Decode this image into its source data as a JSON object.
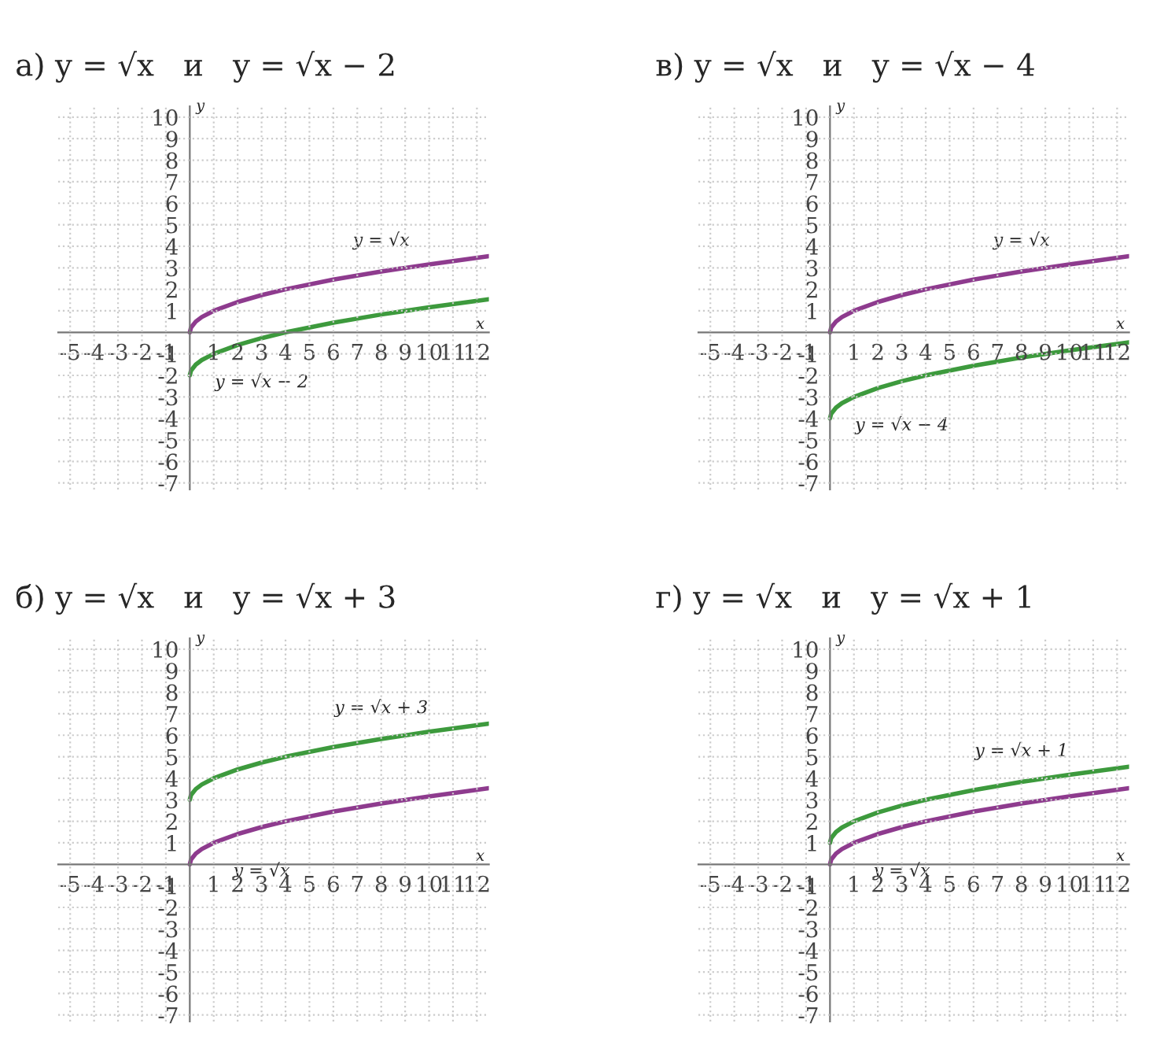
{
  "chart_data": [
    {
      "type": "line",
      "title": "а) y = √x   и   y = √x − 2",
      "xlabel": "x",
      "ylabel": "y",
      "xlim": [
        -5.5,
        12.5
      ],
      "ylim": [
        -7.3,
        10.5
      ],
      "xticks": [
        -5,
        -4,
        -3,
        -2,
        -1,
        1,
        2,
        3,
        4,
        5,
        6,
        7,
        8,
        9,
        10,
        11,
        12
      ],
      "yticks": [
        -7,
        -6,
        -5,
        -4,
        -3,
        -2,
        -1,
        1,
        2,
        3,
        4,
        5,
        6,
        7,
        8,
        9,
        10
      ],
      "grid": true,
      "legend": false,
      "x": [
        0,
        0.05,
        0.25,
        0.5,
        1,
        2,
        3,
        4,
        6,
        8,
        10,
        12.5
      ],
      "series": [
        {
          "name": "y = √x",
          "color": "#8e3b8e",
          "values": [
            0,
            0.22,
            0.5,
            0.71,
            1,
            1.41,
            1.73,
            2,
            2.45,
            2.83,
            3.16,
            3.54
          ]
        },
        {
          "name": "y = √x − 2",
          "color": "#3d9a3d",
          "values": [
            -2,
            -1.78,
            -1.5,
            -1.29,
            -1,
            -0.59,
            -0.27,
            0,
            0.45,
            0.83,
            1.16,
            1.54
          ]
        }
      ]
    },
    {
      "type": "line",
      "title": "в) y = √x   и   y = √x − 4",
      "xlabel": "x",
      "ylabel": "y",
      "xlim": [
        -5.5,
        12.5
      ],
      "ylim": [
        -7.3,
        10.5
      ],
      "xticks": [
        -5,
        -4,
        -3,
        -2,
        -1,
        1,
        2,
        3,
        4,
        5,
        6,
        7,
        8,
        9,
        10,
        11,
        12
      ],
      "yticks": [
        -7,
        -6,
        -5,
        -4,
        -3,
        -2,
        -1,
        1,
        2,
        3,
        4,
        5,
        6,
        7,
        8,
        9,
        10
      ],
      "grid": true,
      "legend": false,
      "x": [
        0,
        0.05,
        0.25,
        0.5,
        1,
        2,
        3,
        4,
        6,
        8,
        10,
        12.5
      ],
      "series": [
        {
          "name": "y = √x",
          "color": "#8e3b8e",
          "values": [
            0,
            0.22,
            0.5,
            0.71,
            1,
            1.41,
            1.73,
            2,
            2.45,
            2.83,
            3.16,
            3.54
          ]
        },
        {
          "name": "y = √x − 4",
          "color": "#3d9a3d",
          "values": [
            -4,
            -3.78,
            -3.5,
            -3.29,
            -3,
            -2.59,
            -2.27,
            -2,
            -1.55,
            -1.17,
            -0.84,
            -0.46
          ]
        }
      ]
    },
    {
      "type": "line",
      "title": "б) y = √x   и   y = √x + 3",
      "xlabel": "x",
      "ylabel": "y",
      "xlim": [
        -5.5,
        12.5
      ],
      "ylim": [
        -7.3,
        10.5
      ],
      "xticks": [
        -5,
        -4,
        -3,
        -2,
        -1,
        1,
        2,
        3,
        4,
        5,
        6,
        7,
        8,
        9,
        10,
        11,
        12
      ],
      "yticks": [
        -7,
        -6,
        -5,
        -4,
        -3,
        -2,
        -1,
        1,
        2,
        3,
        4,
        5,
        6,
        7,
        8,
        9,
        10
      ],
      "grid": true,
      "legend": false,
      "x": [
        0,
        0.05,
        0.25,
        0.5,
        1,
        2,
        3,
        4,
        6,
        8,
        10,
        12.5
      ],
      "series": [
        {
          "name": "y = √x",
          "color": "#8e3b8e",
          "values": [
            0,
            0.22,
            0.5,
            0.71,
            1,
            1.41,
            1.73,
            2,
            2.45,
            2.83,
            3.16,
            3.54
          ]
        },
        {
          "name": "y = √x + 3",
          "color": "#3d9a3d",
          "values": [
            3,
            3.22,
            3.5,
            3.71,
            4,
            4.41,
            4.73,
            5,
            5.45,
            5.83,
            6.16,
            6.54
          ]
        }
      ]
    },
    {
      "type": "line",
      "title": "г) y = √x   и   y = √x + 1",
      "xlabel": "x",
      "ylabel": "y",
      "xlim": [
        -5.5,
        12.5
      ],
      "ylim": [
        -7.3,
        10.5
      ],
      "xticks": [
        -5,
        -4,
        -3,
        -2,
        -1,
        1,
        2,
        3,
        4,
        5,
        6,
        7,
        8,
        9,
        10,
        11,
        12
      ],
      "yticks": [
        -7,
        -6,
        -5,
        -4,
        -3,
        -2,
        -1,
        1,
        2,
        3,
        4,
        5,
        6,
        7,
        8,
        9,
        10
      ],
      "grid": true,
      "legend": false,
      "x": [
        0,
        0.05,
        0.25,
        0.5,
        1,
        2,
        3,
        4,
        6,
        8,
        10,
        12.5
      ],
      "series": [
        {
          "name": "y = √x",
          "color": "#8e3b8e",
          "values": [
            0,
            0.22,
            0.5,
            0.71,
            1,
            1.41,
            1.73,
            2,
            2.45,
            2.83,
            3.16,
            3.54
          ]
        },
        {
          "name": "y = √x + 1",
          "color": "#3d9a3d",
          "values": [
            1,
            1.22,
            1.5,
            1.71,
            2,
            2.41,
            2.73,
            3,
            3.45,
            3.83,
            4.16,
            4.54
          ]
        }
      ]
    }
  ]
}
